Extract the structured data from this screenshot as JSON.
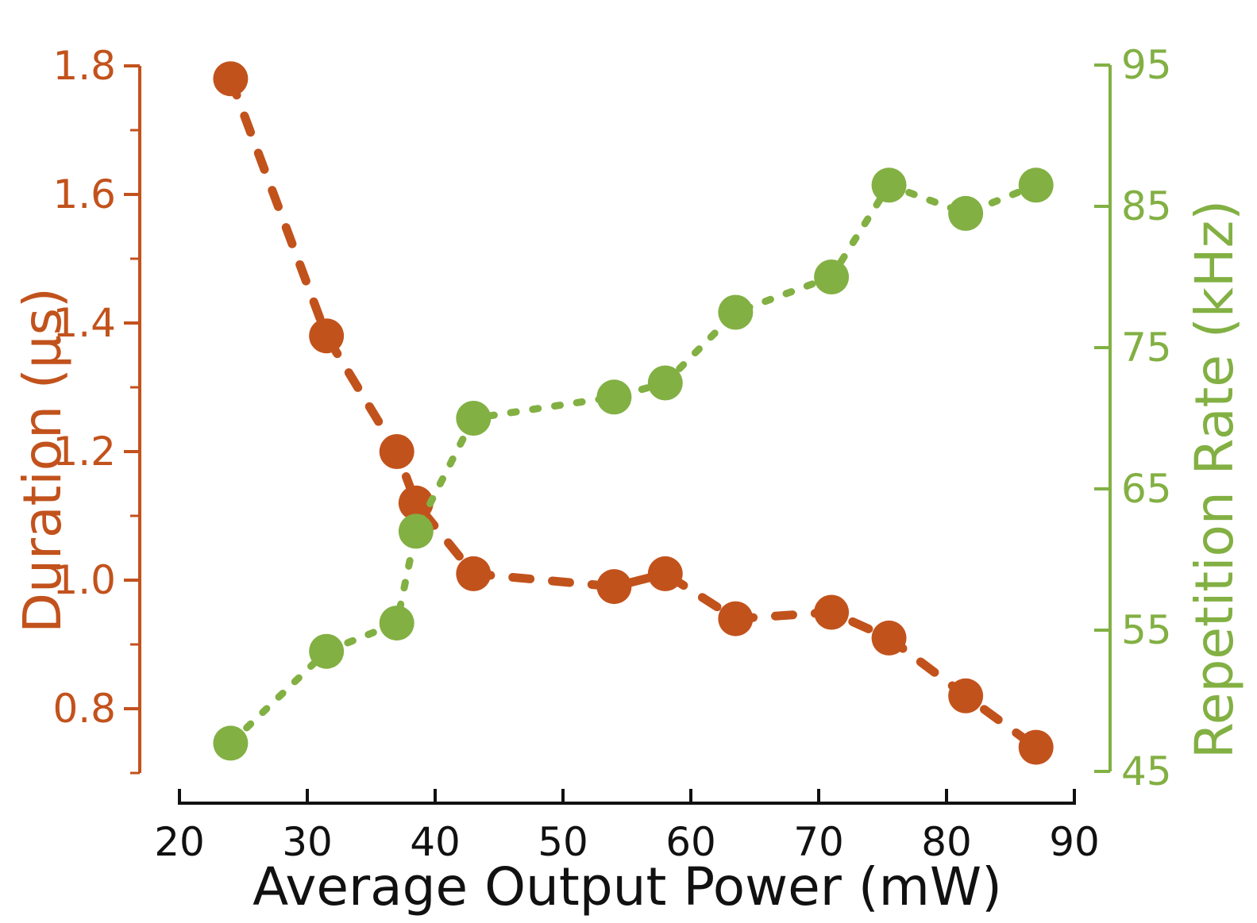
{
  "chart_data": {
    "type": "line",
    "title": "",
    "xlabel": "Average Output Power (mW)",
    "xlim": [
      20,
      90
    ],
    "x_ticks": [
      20,
      30,
      40,
      50,
      60,
      70,
      80,
      90
    ],
    "x": [
      24,
      31.5,
      37,
      38.5,
      43,
      54,
      58,
      63.5,
      71,
      75.5,
      81.5,
      87
    ],
    "series": [
      {
        "name": "Duration",
        "axis": "left",
        "values": [
          1.78,
          1.38,
          1.2,
          1.12,
          1.01,
          0.99,
          1.01,
          0.94,
          0.95,
          0.91,
          0.82,
          0.74
        ],
        "color": "#c2521c",
        "line_style": "dashed",
        "marker": "circle"
      },
      {
        "name": "Repetition Rate",
        "axis": "right",
        "values": [
          47,
          53.5,
          55.5,
          62,
          70,
          71.5,
          72.5,
          77.5,
          80,
          86.5,
          84.5,
          86.5
        ],
        "color": "#82b043",
        "line_style": "dotted",
        "marker": "circle"
      }
    ],
    "left_axis": {
      "label": "Duration (µs)",
      "color": "#c2521c",
      "lim": [
        0.7,
        1.8
      ],
      "ticks": [
        1.8,
        1.6,
        1.4,
        1.2,
        1.0,
        0.8
      ],
      "minor_ticks": [
        1.7,
        1.5,
        1.3,
        1.1,
        0.9,
        0.7
      ]
    },
    "right_axis": {
      "label": "Repetition Rate (kHz)",
      "color": "#82b043",
      "lim": [
        45,
        95
      ],
      "ticks": [
        95,
        85,
        75,
        65,
        55,
        45
      ]
    },
    "x_axis_color": "#111111",
    "grid": false,
    "legend": "none"
  }
}
